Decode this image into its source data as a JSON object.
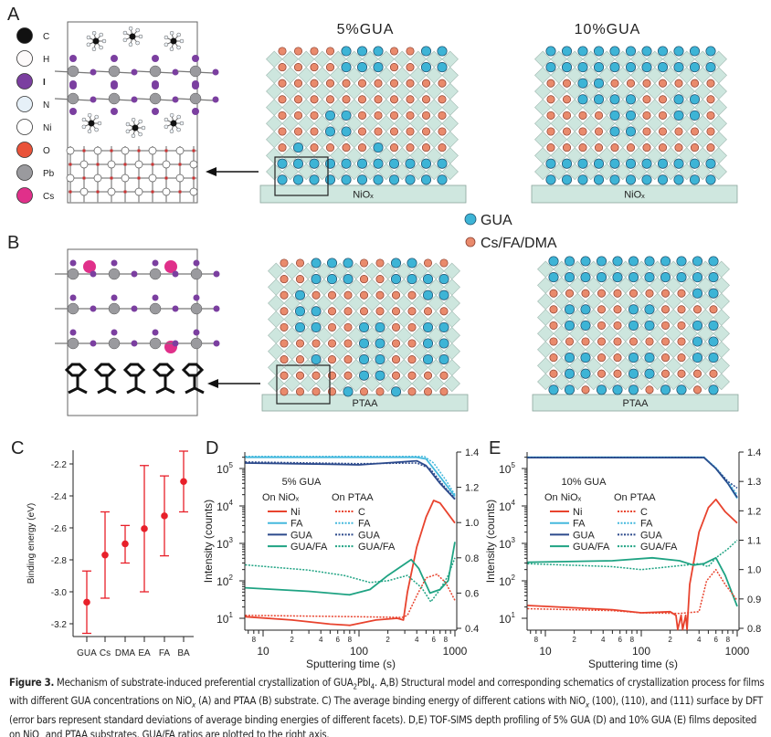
{
  "panel_labels": {
    "a": "A",
    "b": "B",
    "c": "C",
    "d": "D",
    "e": "E"
  },
  "atom_legend": [
    {
      "label": "C",
      "color": "#111111"
    },
    {
      "label": "H",
      "color": "#fdfafa"
    },
    {
      "label": "I",
      "color": "#7b3fa0"
    },
    {
      "label": "N",
      "color": "#e6f0f8"
    },
    {
      "label": "Ni",
      "color": "#ffffff"
    },
    {
      "label": "O",
      "color": "#e9533a"
    },
    {
      "label": "Pb",
      "color": "#9a9a9e"
    },
    {
      "label": "Cs",
      "color": "#e0308a"
    }
  ],
  "schematics": {
    "colors": {
      "gua": "#3db4d6",
      "cs": "#e98a6c",
      "octahedron": "#cde6de",
      "substrate": "#cfe7df"
    },
    "legend": {
      "gua": "GUA",
      "cs": "Cs/FA/DMA"
    },
    "panels": [
      {
        "title": "5%GUA",
        "substrate": "NiOₓ",
        "rows": [
          "CCCCGGGCCGG",
          "CCCCGGGCCGG",
          "CCCCCCCCCCC",
          "CCCCCCCCCCC",
          "CCCGGCCCCCC",
          "CCCGGCCCCCC",
          "CGCCCCGCCCC",
          "GGGGGGGGGGG",
          "GGGGGGGGGGG"
        ]
      },
      {
        "title": "10%GUA",
        "substrate": "NiOₓ",
        "rows": [
          "GGGGGGGGGGG",
          "GGGGGGGGGGG",
          "CCGGCCCCCCC",
          "CCGGGGCCGGC",
          "CCCCGGCCGGC",
          "CCCCGGCCCCC",
          "CCCCCCCCCCC",
          "GGGGGGGGGGG",
          "GGGGGGGGGGG"
        ]
      },
      {
        "title": "",
        "substrate": "PTAA",
        "rows": [
          "CCGGGCCGGCC",
          "CCGGGCCGGGG",
          "CGCCCCCCCGG",
          "CGGCCCCCCCC",
          "CGGCCGGCCGG",
          "CCCCCGGCCGG",
          "CCGCCGGCCGG",
          "CCCCCGGCCCC",
          "CCCCGCCGCCC"
        ]
      },
      {
        "title": "",
        "substrate": "PTAA",
        "rows": [
          "GGGGGGGGGGG",
          "GGGGGGGGGGG",
          "CCCCCCCCCGG",
          "CGGCCGGCCCC",
          "CGGCCGGCCGG",
          "CCCCCCCCCGG",
          "CGGCCGGCCGG",
          "CGGCCGGCCCC",
          "GGCGGGCGGCG"
        ]
      }
    ]
  },
  "chart_data": [
    {
      "id": "C",
      "type": "scatter",
      "xlabel": "",
      "ylabel": "Binding energy (eV)",
      "categories": [
        "GUA",
        "Cs",
        "DMA",
        "EA",
        "FA",
        "BA"
      ],
      "values": [
        -3.065,
        -2.77,
        -2.7,
        -2.605,
        -2.525,
        -2.31
      ],
      "error_low": [
        -3.26,
        -3.04,
        -2.82,
        -3.0,
        -2.775,
        -2.5
      ],
      "error_high": [
        -2.87,
        -2.5,
        -2.585,
        -2.21,
        -2.275,
        -2.12
      ],
      "yticks": [
        -2.2,
        -2.4,
        -2.6,
        -2.8,
        -3.0,
        -3.2
      ],
      "ylim": [
        -3.33,
        -2.11
      ],
      "color": "#e8202a"
    },
    {
      "id": "D",
      "type": "line",
      "title": "5% GUA",
      "xlabel": "Sputtering time (s)",
      "ylabel": "Intensity (counts)",
      "xscale": "log",
      "xlim": [
        6.5,
        1000
      ],
      "ylim_left_log10": [
        0.7,
        5.44
      ],
      "ylim_right": [
        0.4,
        1.4
      ],
      "yticks_right": [
        "0.4",
        "0.6",
        "0.8",
        "1.0",
        "1.2",
        "1.4"
      ],
      "legend_groups": [
        "On NiOₓ",
        "On PTAA"
      ],
      "series": [
        {
          "name": "Ni",
          "group": "NiOx",
          "axis": "left",
          "style": "solid",
          "color": "#e8432e",
          "points": [
            [
              6.5,
              11
            ],
            [
              20,
              9
            ],
            [
              50,
              7
            ],
            [
              80,
              6.5
            ],
            [
              150,
              9
            ],
            [
              250,
              10
            ],
            [
              290,
              9
            ],
            [
              320,
              50
            ],
            [
              400,
              800
            ],
            [
              500,
              5000
            ],
            [
              600,
              14000
            ],
            [
              700,
              12000
            ],
            [
              1000,
              3500
            ]
          ]
        },
        {
          "name": "FA",
          "group": "NiOx",
          "axis": "left",
          "style": "solid",
          "color": "#45b9dd",
          "points": [
            [
              6.5,
              200000
            ],
            [
              400,
              200000
            ],
            [
              500,
              180000
            ],
            [
              700,
              60000
            ],
            [
              1000,
              18000
            ]
          ]
        },
        {
          "name": "GUA",
          "group": "NiOx",
          "axis": "left",
          "style": "solid",
          "color": "#2c4a8c",
          "points": [
            [
              6.5,
              140000
            ],
            [
              50,
              130000
            ],
            [
              100,
              125000
            ],
            [
              400,
              160000
            ],
            [
              500,
              120000
            ],
            [
              700,
              40000
            ],
            [
              1000,
              15000
            ]
          ]
        },
        {
          "name": "GUA/FA",
          "group": "NiOx",
          "axis": "right",
          "style": "solid",
          "color": "#1fa383",
          "points": [
            [
              6.5,
              0.63
            ],
            [
              30,
              0.61
            ],
            [
              80,
              0.59
            ],
            [
              130,
              0.62
            ],
            [
              200,
              0.7
            ],
            [
              350,
              0.79
            ],
            [
              420,
              0.74
            ],
            [
              550,
              0.6
            ],
            [
              700,
              0.62
            ],
            [
              850,
              0.67
            ],
            [
              1000,
              0.89
            ]
          ]
        },
        {
          "name": "C",
          "group": "PTAA",
          "axis": "left",
          "style": "dotted",
          "color": "#e8432e",
          "points": [
            [
              6.5,
              12
            ],
            [
              100,
              11
            ],
            [
              280,
              10.5
            ],
            [
              320,
              12
            ],
            [
              400,
              40
            ],
            [
              500,
              120
            ],
            [
              650,
              150
            ],
            [
              800,
              90
            ],
            [
              1000,
              30
            ]
          ]
        },
        {
          "name": "FA",
          "group": "PTAA",
          "axis": "left",
          "style": "dotted",
          "color": "#45b9dd",
          "points": [
            [
              6.5,
              210000
            ],
            [
              480,
              210000
            ],
            [
              600,
              140000
            ],
            [
              800,
              50000
            ],
            [
              1000,
              20000
            ]
          ]
        },
        {
          "name": "GUA",
          "group": "PTAA",
          "axis": "left",
          "style": "dotted",
          "color": "#2c4a8c",
          "points": [
            [
              6.5,
              150000
            ],
            [
              100,
              135000
            ],
            [
              400,
              140000
            ],
            [
              550,
              100000
            ],
            [
              800,
              30000
            ],
            [
              1000,
              16000
            ]
          ]
        },
        {
          "name": "GUA/FA",
          "group": "PTAA",
          "axis": "right",
          "style": "dotted",
          "color": "#1fa383",
          "points": [
            [
              6.5,
              0.76
            ],
            [
              30,
              0.73
            ],
            [
              70,
              0.7
            ],
            [
              130,
              0.66
            ],
            [
              200,
              0.67
            ],
            [
              320,
              0.7
            ],
            [
              450,
              0.63
            ],
            [
              560,
              0.55
            ],
            [
              700,
              0.62
            ],
            [
              850,
              0.7
            ],
            [
              1000,
              0.8
            ]
          ]
        }
      ]
    },
    {
      "id": "E",
      "type": "line",
      "title": "10% GUA",
      "xlabel": "Sputtering time (s)",
      "ylabel": "Intensity (counts)",
      "xscale": "log",
      "xlim": [
        6.5,
        1000
      ],
      "ylim_left_log10": [
        0.7,
        5.44
      ],
      "ylim_right": [
        0.8,
        1.4
      ],
      "yticks_right": [
        "0.8",
        "0.9",
        "1.0",
        "1.1",
        "1.2",
        "1.3",
        "1.4"
      ],
      "legend_groups": [
        "On NiOₓ",
        "On PTAA"
      ],
      "series": [
        {
          "name": "Ni",
          "group": "NiOx",
          "axis": "left",
          "style": "solid",
          "color": "#e8432e",
          "points": [
            [
              6.5,
              22
            ],
            [
              50,
              17
            ],
            [
              100,
              14
            ],
            [
              200,
              15
            ],
            [
              230,
              12
            ],
            [
              240,
              5
            ],
            [
              260,
              12
            ],
            [
              270,
              5
            ],
            [
              290,
              12
            ],
            [
              300,
              5
            ],
            [
              320,
              80
            ],
            [
              400,
              2000
            ],
            [
              500,
              9000
            ],
            [
              600,
              15000
            ],
            [
              750,
              7000
            ],
            [
              1000,
              3500
            ]
          ]
        },
        {
          "name": "FA",
          "group": "NiOx",
          "axis": "left",
          "style": "solid",
          "color": "#45b9dd",
          "points": [
            [
              6.5,
              200000
            ],
            [
              450,
              200000
            ],
            [
              600,
              100000
            ],
            [
              800,
              40000
            ],
            [
              1000,
              16000
            ]
          ]
        },
        {
          "name": "GUA",
          "group": "NiOx",
          "axis": "left",
          "style": "solid",
          "color": "#2c4a8c",
          "points": [
            [
              6.5,
              195000
            ],
            [
              450,
              195000
            ],
            [
              600,
              100000
            ],
            [
              800,
              40000
            ],
            [
              1000,
              17000
            ]
          ]
        },
        {
          "name": "GUA/FA",
          "group": "NiOx",
          "axis": "right",
          "style": "solid",
          "color": "#1fa383",
          "points": [
            [
              6.5,
              1.025
            ],
            [
              50,
              1.03
            ],
            [
              130,
              1.04
            ],
            [
              250,
              1.03
            ],
            [
              350,
              1.015
            ],
            [
              450,
              1.02
            ],
            [
              600,
              1.04
            ],
            [
              750,
              0.98
            ],
            [
              1000,
              0.875
            ]
          ]
        },
        {
          "name": "C",
          "group": "PTAA",
          "axis": "left",
          "style": "dotted",
          "color": "#e8432e",
          "points": [
            [
              6.5,
              18
            ],
            [
              50,
              16
            ],
            [
              100,
              14
            ],
            [
              250,
              13.5
            ],
            [
              300,
              14
            ],
            [
              400,
              15
            ],
            [
              480,
              100
            ],
            [
              600,
              200
            ],
            [
              750,
              80
            ],
            [
              1000,
              30
            ]
          ]
        },
        {
          "name": "FA",
          "group": "PTAA",
          "axis": "left",
          "style": "dotted",
          "color": "#45b9dd",
          "points": [
            [
              6.5,
              200000
            ],
            [
              450,
              200000
            ],
            [
              600,
              105000
            ],
            [
              800,
              45000
            ],
            [
              1000,
              20000
            ]
          ]
        },
        {
          "name": "GUA",
          "group": "PTAA",
          "axis": "left",
          "style": "dotted",
          "color": "#2c4a8c",
          "points": [
            [
              6.5,
              200000
            ],
            [
              450,
              200000
            ],
            [
              600,
              100000
            ],
            [
              800,
              45000
            ],
            [
              1000,
              30000
            ]
          ]
        },
        {
          "name": "GUA/FA",
          "group": "PTAA",
          "axis": "right",
          "style": "dotted",
          "color": "#1fa383",
          "points": [
            [
              6.5,
              1.02
            ],
            [
              50,
              1.01
            ],
            [
              100,
              1.0
            ],
            [
              200,
              1.01
            ],
            [
              400,
              1.02
            ],
            [
              500,
              1.01
            ],
            [
              600,
              1.04
            ],
            [
              800,
              1.07
            ],
            [
              1000,
              1.1
            ]
          ]
        }
      ]
    }
  ],
  "caption": [
    {
      "t": "Figure 3.",
      "b": true
    },
    {
      "t": "  Mechanism of substrate-induced preferential crystallization of GUA"
    },
    {
      "t": "2",
      "sub": true
    },
    {
      "t": "PbI"
    },
    {
      "t": "4",
      "sub": true
    },
    {
      "t": ". A,B) Structural model and corresponding schematics of crystallization process for films with different GUA concentrations on NiO"
    },
    {
      "t": "x",
      "sub": true
    },
    {
      "t": " (A) and PTAA (B) substrate. C) The average binding energy of different cations with NiO"
    },
    {
      "t": "x",
      "sub": true
    },
    {
      "t": " (100), (110), and (111) surface by DFT (error bars represent standard deviations of average binding energies of different facets). D,E) TOF-SIMS depth profiling of 5% GUA (D) and 10% GUA (E) films deposited on NiO"
    },
    {
      "t": "x",
      "sub": true
    },
    {
      "t": " and PTAA substrates. GUA/FA ratios are plotted to the right axis."
    }
  ]
}
